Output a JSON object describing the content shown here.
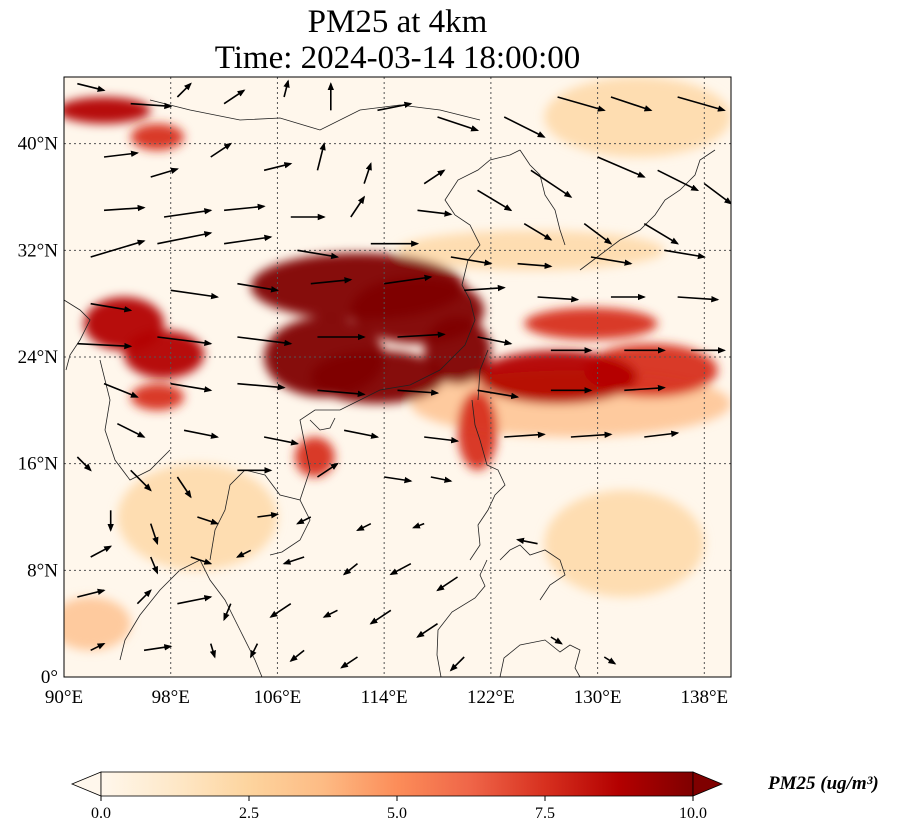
{
  "title": {
    "line1": "PM25 at 4km",
    "line2": "Time: 2024-03-14 18:00:00"
  },
  "map": {
    "projection": "PlateCarree",
    "extent": {
      "lon_min": 90,
      "lon_max": 140,
      "lat_min": 0,
      "lat_max": 45
    },
    "gridlines": true,
    "lon_ticks": [
      {
        "value": 90,
        "label": "90°E"
      },
      {
        "value": 98,
        "label": "98°E"
      },
      {
        "value": 106,
        "label": "106°E"
      },
      {
        "value": 114,
        "label": "114°E"
      },
      {
        "value": 122,
        "label": "122°E"
      },
      {
        "value": 130,
        "label": "130°E"
      },
      {
        "value": 138,
        "label": "138°E"
      }
    ],
    "lat_ticks": [
      {
        "value": 0,
        "label": "0°"
      },
      {
        "value": 8,
        "label": "8°N"
      },
      {
        "value": 16,
        "label": "16°N"
      },
      {
        "value": 24,
        "label": "24°N"
      },
      {
        "value": 32,
        "label": "32°N"
      },
      {
        "value": 40,
        "label": "40°N"
      }
    ]
  },
  "colorbar": {
    "label": "PM25 (ug/m³)",
    "min": 0,
    "max": 10,
    "extend": "both",
    "colormap": "OrRd",
    "colors": [
      "#fff7ec",
      "#fee8c8",
      "#fdd49e",
      "#fdbb84",
      "#fc8d59",
      "#ef6548",
      "#d7301f",
      "#b30000",
      "#7f0000"
    ],
    "ticks": [
      {
        "value": 0,
        "label": "0.0"
      },
      {
        "value": 2.5,
        "label": "2.5"
      },
      {
        "value": 5,
        "label": "5.0"
      },
      {
        "value": 7.5,
        "label": "7.5"
      },
      {
        "value": 10,
        "label": "10.0"
      }
    ]
  },
  "field": {
    "plumes": [
      {
        "lon": 112,
        "lat": 29.3,
        "rx": 8,
        "ry": 2.5,
        "value": 10
      },
      {
        "lon": 116.5,
        "lat": 27.5,
        "rx": 5,
        "ry": 2.5,
        "value": 10
      },
      {
        "lon": 109.5,
        "lat": 24,
        "rx": 4.5,
        "ry": 3,
        "value": 10
      },
      {
        "lon": 113.5,
        "lat": 22.5,
        "rx": 5,
        "ry": 2,
        "value": 10
      },
      {
        "lon": 119.5,
        "lat": 24.5,
        "rx": 2.5,
        "ry": 2.5,
        "value": 10
      },
      {
        "lon": 127,
        "lat": 22.5,
        "rx": 6,
        "ry": 2,
        "value": 9
      },
      {
        "lon": 134,
        "lat": 23,
        "rx": 5,
        "ry": 2,
        "value": 8
      },
      {
        "lon": 129.5,
        "lat": 26.5,
        "rx": 5,
        "ry": 1.2,
        "value": 8
      },
      {
        "lon": 94.5,
        "lat": 26.5,
        "rx": 3,
        "ry": 2,
        "value": 9
      },
      {
        "lon": 97.5,
        "lat": 24.2,
        "rx": 3,
        "ry": 1.8,
        "value": 9
      },
      {
        "lon": 97,
        "lat": 21,
        "rx": 2,
        "ry": 1,
        "value": 8
      },
      {
        "lon": 108.8,
        "lat": 16.5,
        "rx": 1.5,
        "ry": 1.5,
        "value": 8
      },
      {
        "lon": 121,
        "lat": 18.5,
        "rx": 1.5,
        "ry": 3,
        "value": 8
      },
      {
        "lon": 93,
        "lat": 42.5,
        "rx": 3.5,
        "ry": 1,
        "value": 9
      },
      {
        "lon": 97,
        "lat": 40.5,
        "rx": 2,
        "ry": 1,
        "value": 8
      },
      {
        "lon": 92,
        "lat": 4,
        "rx": 3,
        "ry": 2,
        "value": 4
      },
      {
        "lon": 128,
        "lat": 20.5,
        "rx": 12,
        "ry": 2.5,
        "value": 4
      },
      {
        "lon": 100,
        "lat": 12,
        "rx": 6,
        "ry": 4,
        "value": 3
      },
      {
        "lon": 132,
        "lat": 10,
        "rx": 6,
        "ry": 4,
        "value": 2.5
      },
      {
        "lon": 133,
        "lat": 42,
        "rx": 7,
        "ry": 3,
        "value": 2.5
      },
      {
        "lon": 125,
        "lat": 32,
        "rx": 10,
        "ry": 1.5,
        "value": 2
      }
    ]
  },
  "wind_vectors": [
    {
      "lon": 91,
      "lat": 44.5,
      "dx": 2,
      "dy": -0.5
    },
    {
      "lon": 95,
      "lat": 43,
      "dx": 3,
      "dy": -0.2
    },
    {
      "lon": 98.5,
      "lat": 43.5,
      "dx": 1,
      "dy": 1
    },
    {
      "lon": 102,
      "lat": 43,
      "dx": 1.5,
      "dy": 1
    },
    {
      "lon": 106.5,
      "lat": 43.5,
      "dx": 0.3,
      "dy": 1.2
    },
    {
      "lon": 110,
      "lat": 42.5,
      "dx": 0,
      "dy": 2
    },
    {
      "lon": 113.5,
      "lat": 42.5,
      "dx": 2.5,
      "dy": 0.5
    },
    {
      "lon": 118,
      "lat": 42,
      "dx": 3,
      "dy": -1
    },
    {
      "lon": 123,
      "lat": 42,
      "dx": 3,
      "dy": -1.5
    },
    {
      "lon": 127,
      "lat": 43.5,
      "dx": 3.5,
      "dy": -1
    },
    {
      "lon": 131,
      "lat": 43.5,
      "dx": 3,
      "dy": -1
    },
    {
      "lon": 136,
      "lat": 43.5,
      "dx": 3.5,
      "dy": -1
    },
    {
      "lon": 93,
      "lat": 39,
      "dx": 2.5,
      "dy": 0.3
    },
    {
      "lon": 96.5,
      "lat": 37.5,
      "dx": 2,
      "dy": 0.6
    },
    {
      "lon": 101,
      "lat": 39,
      "dx": 1.5,
      "dy": 1
    },
    {
      "lon": 105,
      "lat": 38,
      "dx": 2,
      "dy": 0.5
    },
    {
      "lon": 109,
      "lat": 38,
      "dx": 0.5,
      "dy": 2
    },
    {
      "lon": 112.5,
      "lat": 37,
      "dx": 0.5,
      "dy": 1.5
    },
    {
      "lon": 117,
      "lat": 37,
      "dx": 1.5,
      "dy": 1
    },
    {
      "lon": 121,
      "lat": 36.5,
      "dx": 2.5,
      "dy": -1.5
    },
    {
      "lon": 125,
      "lat": 38,
      "dx": 3,
      "dy": -2
    },
    {
      "lon": 130,
      "lat": 39,
      "dx": 3.5,
      "dy": -1.5
    },
    {
      "lon": 134.5,
      "lat": 38,
      "dx": 3,
      "dy": -1.5
    },
    {
      "lon": 138,
      "lat": 37,
      "dx": 2,
      "dy": -1.5
    },
    {
      "lon": 93,
      "lat": 35,
      "dx": 3,
      "dy": 0.2
    },
    {
      "lon": 97.5,
      "lat": 34.5,
      "dx": 3.5,
      "dy": 0.5
    },
    {
      "lon": 102,
      "lat": 35,
      "dx": 3,
      "dy": 0.3
    },
    {
      "lon": 107,
      "lat": 34.5,
      "dx": 2.5,
      "dy": 0
    },
    {
      "lon": 111.5,
      "lat": 34.5,
      "dx": 1,
      "dy": 1.5
    },
    {
      "lon": 116.5,
      "lat": 35,
      "dx": 2.5,
      "dy": -0.3
    },
    {
      "lon": 124.5,
      "lat": 34,
      "dx": 2,
      "dy": -1.2
    },
    {
      "lon": 129,
      "lat": 34,
      "dx": 2,
      "dy": -1.5
    },
    {
      "lon": 133.5,
      "lat": 34,
      "dx": 2.5,
      "dy": -1.5
    },
    {
      "lon": 92,
      "lat": 31.5,
      "dx": 4,
      "dy": 1.2
    },
    {
      "lon": 97,
      "lat": 32.5,
      "dx": 4,
      "dy": 0.8
    },
    {
      "lon": 102,
      "lat": 32.5,
      "dx": 3.5,
      "dy": 0.5
    },
    {
      "lon": 107.5,
      "lat": 32,
      "dx": 3,
      "dy": -0.5
    },
    {
      "lon": 113,
      "lat": 32.5,
      "dx": 3.5,
      "dy": 0
    },
    {
      "lon": 119,
      "lat": 31.5,
      "dx": 3,
      "dy": -0.5
    },
    {
      "lon": 124,
      "lat": 31,
      "dx": 2.5,
      "dy": -0.2
    },
    {
      "lon": 129.5,
      "lat": 31.5,
      "dx": 3,
      "dy": -0.5
    },
    {
      "lon": 135,
      "lat": 32,
      "dx": 3,
      "dy": -0.5
    },
    {
      "lon": 92,
      "lat": 28,
      "dx": 3,
      "dy": -0.5
    },
    {
      "lon": 98,
      "lat": 29,
      "dx": 3.5,
      "dy": -0.5
    },
    {
      "lon": 103,
      "lat": 29.5,
      "dx": 3,
      "dy": -0.5
    },
    {
      "lon": 108.5,
      "lat": 29.5,
      "dx": 3,
      "dy": 0.3
    },
    {
      "lon": 114,
      "lat": 29.5,
      "dx": 3.5,
      "dy": 0.5
    },
    {
      "lon": 120,
      "lat": 29,
      "dx": 3,
      "dy": 0.2
    },
    {
      "lon": 125.5,
      "lat": 28.5,
      "dx": 3,
      "dy": -0.2
    },
    {
      "lon": 131,
      "lat": 28.5,
      "dx": 2.5,
      "dy": 0
    },
    {
      "lon": 136,
      "lat": 28.5,
      "dx": 3,
      "dy": -0.2
    },
    {
      "lon": 91,
      "lat": 25,
      "dx": 4,
      "dy": -0.2
    },
    {
      "lon": 97,
      "lat": 25.5,
      "dx": 4,
      "dy": -0.5
    },
    {
      "lon": 103,
      "lat": 25.5,
      "dx": 4,
      "dy": -0.5
    },
    {
      "lon": 109,
      "lat": 25.5,
      "dx": 3.5,
      "dy": 0
    },
    {
      "lon": 115,
      "lat": 25.5,
      "dx": 3.5,
      "dy": 0.2
    },
    {
      "lon": 121,
      "lat": 25.5,
      "dx": 2.5,
      "dy": -0.5
    },
    {
      "lon": 126.5,
      "lat": 24.5,
      "dx": 3,
      "dy": 0
    },
    {
      "lon": 132,
      "lat": 24.5,
      "dx": 3,
      "dy": 0
    },
    {
      "lon": 137,
      "lat": 24.5,
      "dx": 2.5,
      "dy": 0
    },
    {
      "lon": 93,
      "lat": 22,
      "dx": 2.5,
      "dy": -1
    },
    {
      "lon": 98,
      "lat": 22,
      "dx": 3,
      "dy": -0.5
    },
    {
      "lon": 103,
      "lat": 22,
      "dx": 3.5,
      "dy": -0.3
    },
    {
      "lon": 109,
      "lat": 21.5,
      "dx": 3.5,
      "dy": -0.3
    },
    {
      "lon": 115,
      "lat": 21.5,
      "dx": 3,
      "dy": -0.2
    },
    {
      "lon": 121,
      "lat": 21.5,
      "dx": 3,
      "dy": -0.5
    },
    {
      "lon": 126.5,
      "lat": 21.5,
      "dx": 3,
      "dy": 0
    },
    {
      "lon": 132,
      "lat": 21.5,
      "dx": 3,
      "dy": 0.2
    },
    {
      "lon": 94,
      "lat": 19,
      "dx": 2,
      "dy": -1
    },
    {
      "lon": 99,
      "lat": 18.5,
      "dx": 2.5,
      "dy": -0.5
    },
    {
      "lon": 105,
      "lat": 18,
      "dx": 2.5,
      "dy": -0.5
    },
    {
      "lon": 111,
      "lat": 18.5,
      "dx": 2.5,
      "dy": -0.5
    },
    {
      "lon": 117,
      "lat": 18,
      "dx": 2.5,
      "dy": -0.3
    },
    {
      "lon": 123,
      "lat": 18,
      "dx": 3,
      "dy": 0.2
    },
    {
      "lon": 128,
      "lat": 18,
      "dx": 3,
      "dy": 0.2
    },
    {
      "lon": 133.5,
      "lat": 18,
      "dx": 2.5,
      "dy": 0.3
    },
    {
      "lon": 91,
      "lat": 16.5,
      "dx": 1,
      "dy": -1
    },
    {
      "lon": 95,
      "lat": 15.5,
      "dx": 1.5,
      "dy": -1.5
    },
    {
      "lon": 98.5,
      "lat": 15,
      "dx": 1,
      "dy": -1.5
    },
    {
      "lon": 103,
      "lat": 15.5,
      "dx": 2.5,
      "dy": 0
    },
    {
      "lon": 109,
      "lat": 15,
      "dx": 1.5,
      "dy": 1
    },
    {
      "lon": 114,
      "lat": 15,
      "dx": 2,
      "dy": -0.3
    },
    {
      "lon": 117.5,
      "lat": 15,
      "dx": 1.5,
      "dy": -0.3
    },
    {
      "lon": 93.5,
      "lat": 12.5,
      "dx": 0,
      "dy": -1.5
    },
    {
      "lon": 96.5,
      "lat": 11.5,
      "dx": 0.5,
      "dy": -1.5
    },
    {
      "lon": 100,
      "lat": 12,
      "dx": 1.5,
      "dy": -0.5
    },
    {
      "lon": 104.5,
      "lat": 12,
      "dx": 1.5,
      "dy": 0.2
    },
    {
      "lon": 108.5,
      "lat": 12,
      "dx": -1,
      "dy": -0.5
    },
    {
      "lon": 113,
      "lat": 11.5,
      "dx": -1,
      "dy": -0.5
    },
    {
      "lon": 117,
      "lat": 11.5,
      "dx": -0.8,
      "dy": -0.3
    },
    {
      "lon": 92,
      "lat": 9,
      "dx": 1.5,
      "dy": 0.8
    },
    {
      "lon": 96.5,
      "lat": 9,
      "dx": 0.5,
      "dy": -1.2
    },
    {
      "lon": 99.5,
      "lat": 9,
      "dx": 1.5,
      "dy": -0.5
    },
    {
      "lon": 104,
      "lat": 9.5,
      "dx": -1,
      "dy": -0.5
    },
    {
      "lon": 108,
      "lat": 9,
      "dx": -1.5,
      "dy": -0.5
    },
    {
      "lon": 112,
      "lat": 8.5,
      "dx": -1,
      "dy": -0.8
    },
    {
      "lon": 116,
      "lat": 8.5,
      "dx": -1.5,
      "dy": -0.8
    },
    {
      "lon": 119.5,
      "lat": 7.5,
      "dx": -1.5,
      "dy": -1
    },
    {
      "lon": 91,
      "lat": 6,
      "dx": 2,
      "dy": 0.5
    },
    {
      "lon": 95.5,
      "lat": 5.5,
      "dx": 1,
      "dy": 1
    },
    {
      "lon": 98.5,
      "lat": 5.5,
      "dx": 2.5,
      "dy": 0.5
    },
    {
      "lon": 102.5,
      "lat": 5.5,
      "dx": -0.5,
      "dy": -1.2
    },
    {
      "lon": 107,
      "lat": 5.5,
      "dx": -1.5,
      "dy": -1
    },
    {
      "lon": 110.5,
      "lat": 5,
      "dx": -1,
      "dy": -0.5
    },
    {
      "lon": 114.5,
      "lat": 5,
      "dx": -1.5,
      "dy": -1
    },
    {
      "lon": 118,
      "lat": 4,
      "dx": -1.5,
      "dy": -1
    },
    {
      "lon": 92,
      "lat": 2,
      "dx": 1,
      "dy": 0.5
    },
    {
      "lon": 96,
      "lat": 2,
      "dx": 2,
      "dy": 0.3
    },
    {
      "lon": 101,
      "lat": 2.5,
      "dx": 0.3,
      "dy": -1
    },
    {
      "lon": 104.5,
      "lat": 2.5,
      "dx": -0.5,
      "dy": -1
    },
    {
      "lon": 108,
      "lat": 2,
      "dx": -1,
      "dy": -0.8
    },
    {
      "lon": 112,
      "lat": 1.5,
      "dx": -1.2,
      "dy": -0.8
    },
    {
      "lon": 120,
      "lat": 1.5,
      "dx": -1,
      "dy": -1
    },
    {
      "lon": 125.5,
      "lat": 10,
      "dx": -1.5,
      "dy": 0.3
    },
    {
      "lon": 126.5,
      "lat": 3,
      "dx": 0.8,
      "dy": -0.5
    },
    {
      "lon": 130.5,
      "lat": 1.5,
      "dx": 0.8,
      "dy": -0.5
    }
  ]
}
